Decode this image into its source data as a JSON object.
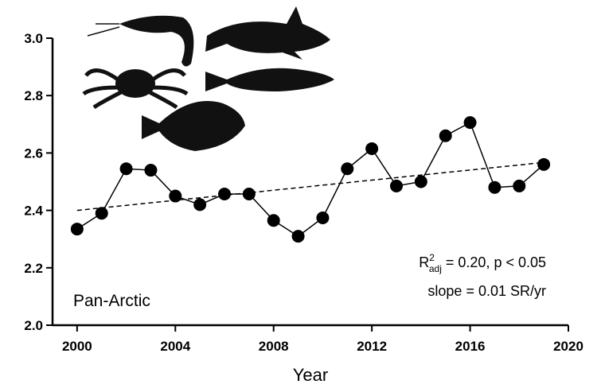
{
  "chart_data": {
    "type": "line",
    "x": [
      2000,
      2001,
      2002,
      2003,
      2004,
      2005,
      2006,
      2007,
      2008,
      2009,
      2010,
      2011,
      2012,
      2013,
      2014,
      2015,
      2016,
      2017,
      2018,
      2019
    ],
    "series": [
      {
        "color": "#000000",
        "values": [
          2.335,
          2.39,
          2.545,
          2.54,
          2.45,
          2.42,
          2.457,
          2.457,
          2.365,
          2.31,
          2.374,
          2.545,
          2.615,
          2.485,
          2.5,
          2.66,
          2.706,
          2.48,
          2.485,
          2.56
        ]
      }
    ],
    "trend": {
      "x": [
        2000,
        2019
      ],
      "values": [
        2.4,
        2.567
      ]
    },
    "xlabel": "Year",
    "xlim": [
      1999,
      2020
    ],
    "xticks": [
      2000,
      2004,
      2008,
      2012,
      2016,
      2020
    ],
    "ylim": [
      2.0,
      3.0
    ],
    "yticks": [
      {
        "value": 2,
        "label": "2.0"
      },
      2.2,
      2.4,
      2.6,
      2.8,
      {
        "value": 3,
        "label": "3.0"
      }
    ],
    "annotations": {
      "r_main": "R",
      "r_sup": "2",
      "r_sub": "adj",
      "r_rest": " = 0.20, p < 0.05",
      "slope": "slope = 0.01 SR/yr",
      "region": "Pan-Arctic"
    }
  }
}
